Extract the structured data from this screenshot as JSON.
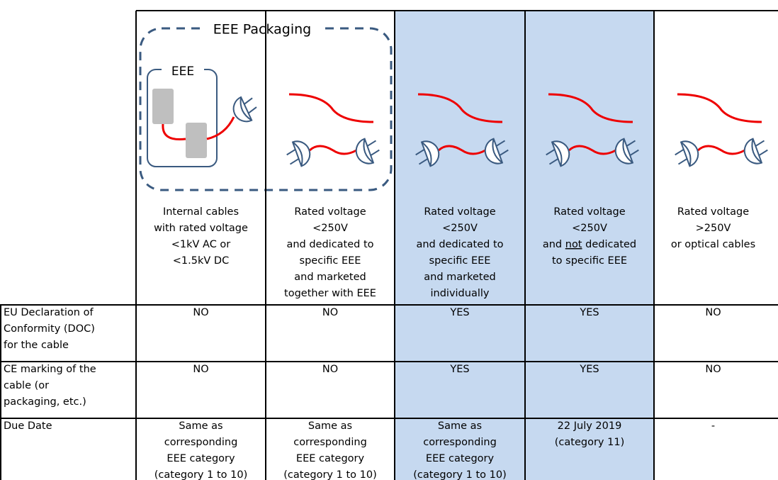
{
  "packaging_label": "EEE Packaging",
  "eee_label": "EEE",
  "columns": [
    {
      "lines": [
        "Internal cables",
        "with rated voltage",
        "<1kV AC or",
        "<1.5kV DC"
      ]
    },
    {
      "lines": [
        "Rated voltage",
        "<250V",
        "and dedicated to",
        "specific EEE",
        "and marketed",
        "together with EEE"
      ]
    },
    {
      "lines": [
        "Rated voltage",
        "<250V",
        "and dedicated to",
        "specific EEE",
        "and marketed",
        "individually"
      ]
    },
    {
      "lines": [
        "Rated voltage",
        "<250V",
        [
          "and ",
          "not",
          " dedicated"
        ],
        "to specific EEE"
      ]
    },
    {
      "lines": [
        "Rated voltage",
        ">250V",
        "or optical cables"
      ]
    }
  ],
  "rows": [
    {
      "label": [
        "EU Declaration of",
        "Conformity (DOC)",
        "for the cable"
      ],
      "cells": [
        [
          "NO"
        ],
        [
          "NO"
        ],
        [
          "YES"
        ],
        [
          "YES"
        ],
        [
          "NO"
        ]
      ]
    },
    {
      "label": [
        "CE marking of the",
        "cable (or",
        "packaging, etc.)"
      ],
      "cells": [
        [
          "NO"
        ],
        [
          "NO"
        ],
        [
          "YES"
        ],
        [
          "YES"
        ],
        [
          "NO"
        ]
      ]
    },
    {
      "label": [
        "Due Date"
      ],
      "cells": [
        [
          "Same as",
          "corresponding",
          "EEE category",
          "(category 1 to 10)"
        ],
        [
          "Same as",
          "corresponding",
          "EEE category",
          "(category 1 to 10)"
        ],
        [
          "Same as",
          "corresponding",
          "EEE category",
          "(category 1 to 10)"
        ],
        [
          "22 July 2019",
          "(category 11)"
        ],
        [
          "-"
        ]
      ]
    }
  ]
}
